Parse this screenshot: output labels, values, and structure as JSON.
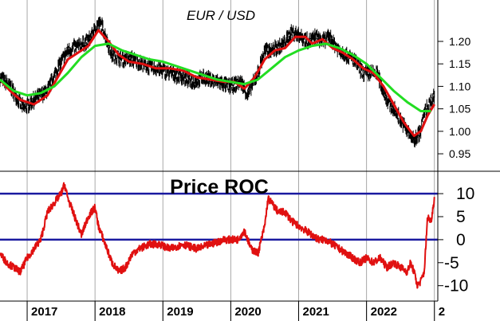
{
  "chart_data": [
    {
      "type": "line",
      "title": "EUR / USD",
      "x_years": [
        "2017",
        "2018",
        "2019",
        "2020",
        "2021",
        "2022",
        "2"
      ],
      "xlim": [
        2016.6,
        2023.05
      ],
      "ylim": [
        0.92,
        1.285
      ],
      "yticks": [
        "1.20",
        "1.15",
        "1.10",
        "1.05",
        "1.00",
        "0.95"
      ],
      "grid": "vertical",
      "series": [
        {
          "color": "#000000",
          "style": "bar-noise",
          "x": [
            2016.6,
            2016.75,
            2016.95,
            2017.1,
            2017.3,
            2017.45,
            2017.6,
            2017.75,
            2017.9,
            2018.05,
            2018.1,
            2018.25,
            2018.4,
            2018.55,
            2018.75,
            2018.9,
            2019.1,
            2019.3,
            2019.45,
            2019.6,
            2019.8,
            2020.0,
            2020.15,
            2020.25,
            2020.4,
            2020.5,
            2020.6,
            2020.75,
            2020.9,
            2021.0,
            2021.15,
            2021.25,
            2021.35,
            2021.45,
            2021.6,
            2021.8,
            2021.95,
            2022.15,
            2022.3,
            2022.45,
            2022.6,
            2022.7,
            2022.8,
            2022.85,
            2022.92,
            2023.0
          ],
          "y": [
            1.12,
            1.1,
            1.05,
            1.07,
            1.09,
            1.14,
            1.18,
            1.19,
            1.2,
            1.24,
            1.235,
            1.17,
            1.16,
            1.16,
            1.145,
            1.14,
            1.13,
            1.12,
            1.11,
            1.12,
            1.11,
            1.1,
            1.11,
            1.08,
            1.13,
            1.18,
            1.18,
            1.19,
            1.22,
            1.215,
            1.2,
            1.21,
            1.2,
            1.21,
            1.18,
            1.16,
            1.13,
            1.13,
            1.07,
            1.04,
            1.0,
            0.98,
            1.0,
            1.04,
            1.06,
            1.08
          ]
        },
        {
          "color": "#e01010",
          "x": [
            2016.6,
            2016.75,
            2016.9,
            2017.1,
            2017.3,
            2017.45,
            2017.6,
            2017.75,
            2017.9,
            2018.05,
            2018.2,
            2018.35,
            2018.5,
            2018.7,
            2018.9,
            2019.1,
            2019.3,
            2019.5,
            2019.7,
            2019.9,
            2020.05,
            2020.2,
            2020.35,
            2020.5,
            2020.65,
            2020.8,
            2020.95,
            2021.1,
            2021.2,
            2021.35,
            2021.5,
            2021.65,
            2021.8,
            2021.95,
            2022.1,
            2022.25,
            2022.4,
            2022.55,
            2022.7,
            2022.8,
            2022.9,
            2023.0
          ],
          "y": [
            1.115,
            1.09,
            1.07,
            1.06,
            1.08,
            1.12,
            1.16,
            1.175,
            1.19,
            1.225,
            1.2,
            1.17,
            1.155,
            1.15,
            1.14,
            1.14,
            1.135,
            1.12,
            1.115,
            1.11,
            1.11,
            1.095,
            1.12,
            1.16,
            1.18,
            1.185,
            1.21,
            1.21,
            1.195,
            1.205,
            1.185,
            1.175,
            1.16,
            1.14,
            1.13,
            1.1,
            1.06,
            1.02,
            0.99,
            1.0,
            1.035,
            1.06
          ]
        },
        {
          "color": "#22dd22",
          "x": [
            2016.6,
            2016.8,
            2017.0,
            2017.2,
            2017.4,
            2017.6,
            2017.8,
            2018.0,
            2018.2,
            2018.4,
            2018.6,
            2018.8,
            2019.0,
            2019.2,
            2019.4,
            2019.6,
            2019.8,
            2020.0,
            2020.2,
            2020.4,
            2020.6,
            2020.8,
            2021.0,
            2021.2,
            2021.4,
            2021.6,
            2021.8,
            2022.0,
            2022.2,
            2022.4,
            2022.6,
            2022.8,
            2022.95
          ],
          "y": [
            1.115,
            1.09,
            1.08,
            1.085,
            1.1,
            1.13,
            1.165,
            1.19,
            1.195,
            1.18,
            1.17,
            1.16,
            1.155,
            1.145,
            1.135,
            1.125,
            1.115,
            1.11,
            1.105,
            1.115,
            1.14,
            1.165,
            1.18,
            1.19,
            1.195,
            1.185,
            1.17,
            1.15,
            1.12,
            1.09,
            1.065,
            1.045,
            1.045
          ]
        }
      ]
    },
    {
      "type": "line",
      "title": "Price ROC",
      "xlim": [
        2016.6,
        2023.05
      ],
      "ylim": [
        -13,
        14
      ],
      "yticks": [
        "10",
        "5",
        "0",
        "-5",
        "-10"
      ],
      "hlines": [
        10,
        0
      ],
      "hline_color": "#1a1aa0",
      "series": [
        {
          "color": "#e01010",
          "x": [
            2016.6,
            2016.7,
            2016.8,
            2016.9,
            2017.0,
            2017.1,
            2017.2,
            2017.3,
            2017.4,
            2017.5,
            2017.55,
            2017.6,
            2017.65,
            2017.7,
            2017.8,
            2017.9,
            2018.0,
            2018.05,
            2018.15,
            2018.25,
            2018.35,
            2018.45,
            2018.55,
            2018.65,
            2018.8,
            2018.95,
            2019.1,
            2019.3,
            2019.5,
            2019.7,
            2019.9,
            2020.1,
            2020.2,
            2020.3,
            2020.4,
            2020.5,
            2020.55,
            2020.6,
            2020.7,
            2020.8,
            2020.9,
            2021.0,
            2021.1,
            2021.2,
            2021.3,
            2021.4,
            2021.5,
            2021.6,
            2021.7,
            2021.8,
            2021.9,
            2022.0,
            2022.1,
            2022.2,
            2022.3,
            2022.4,
            2022.5,
            2022.6,
            2022.65,
            2022.7,
            2022.75,
            2022.8,
            2022.85,
            2022.9,
            2022.95,
            2023.0
          ],
          "y": [
            -3,
            -5,
            -6,
            -7,
            -4,
            -2,
            0,
            6,
            8,
            10,
            12,
            9,
            7,
            5,
            1,
            5,
            7,
            3,
            -1,
            -5,
            -7,
            -6,
            -3,
            -2,
            -1,
            -1,
            -2,
            -1,
            -2,
            -1,
            0,
            0,
            2,
            -2,
            -3,
            3,
            9,
            8,
            6,
            6,
            4,
            3,
            2,
            1,
            0,
            0,
            -1,
            -2,
            -3,
            -4,
            -5,
            -4,
            -5,
            -4,
            -6,
            -5,
            -6,
            -7,
            -5,
            -7,
            -10,
            -9,
            -7,
            5,
            4,
            9
          ]
        }
      ]
    }
  ]
}
